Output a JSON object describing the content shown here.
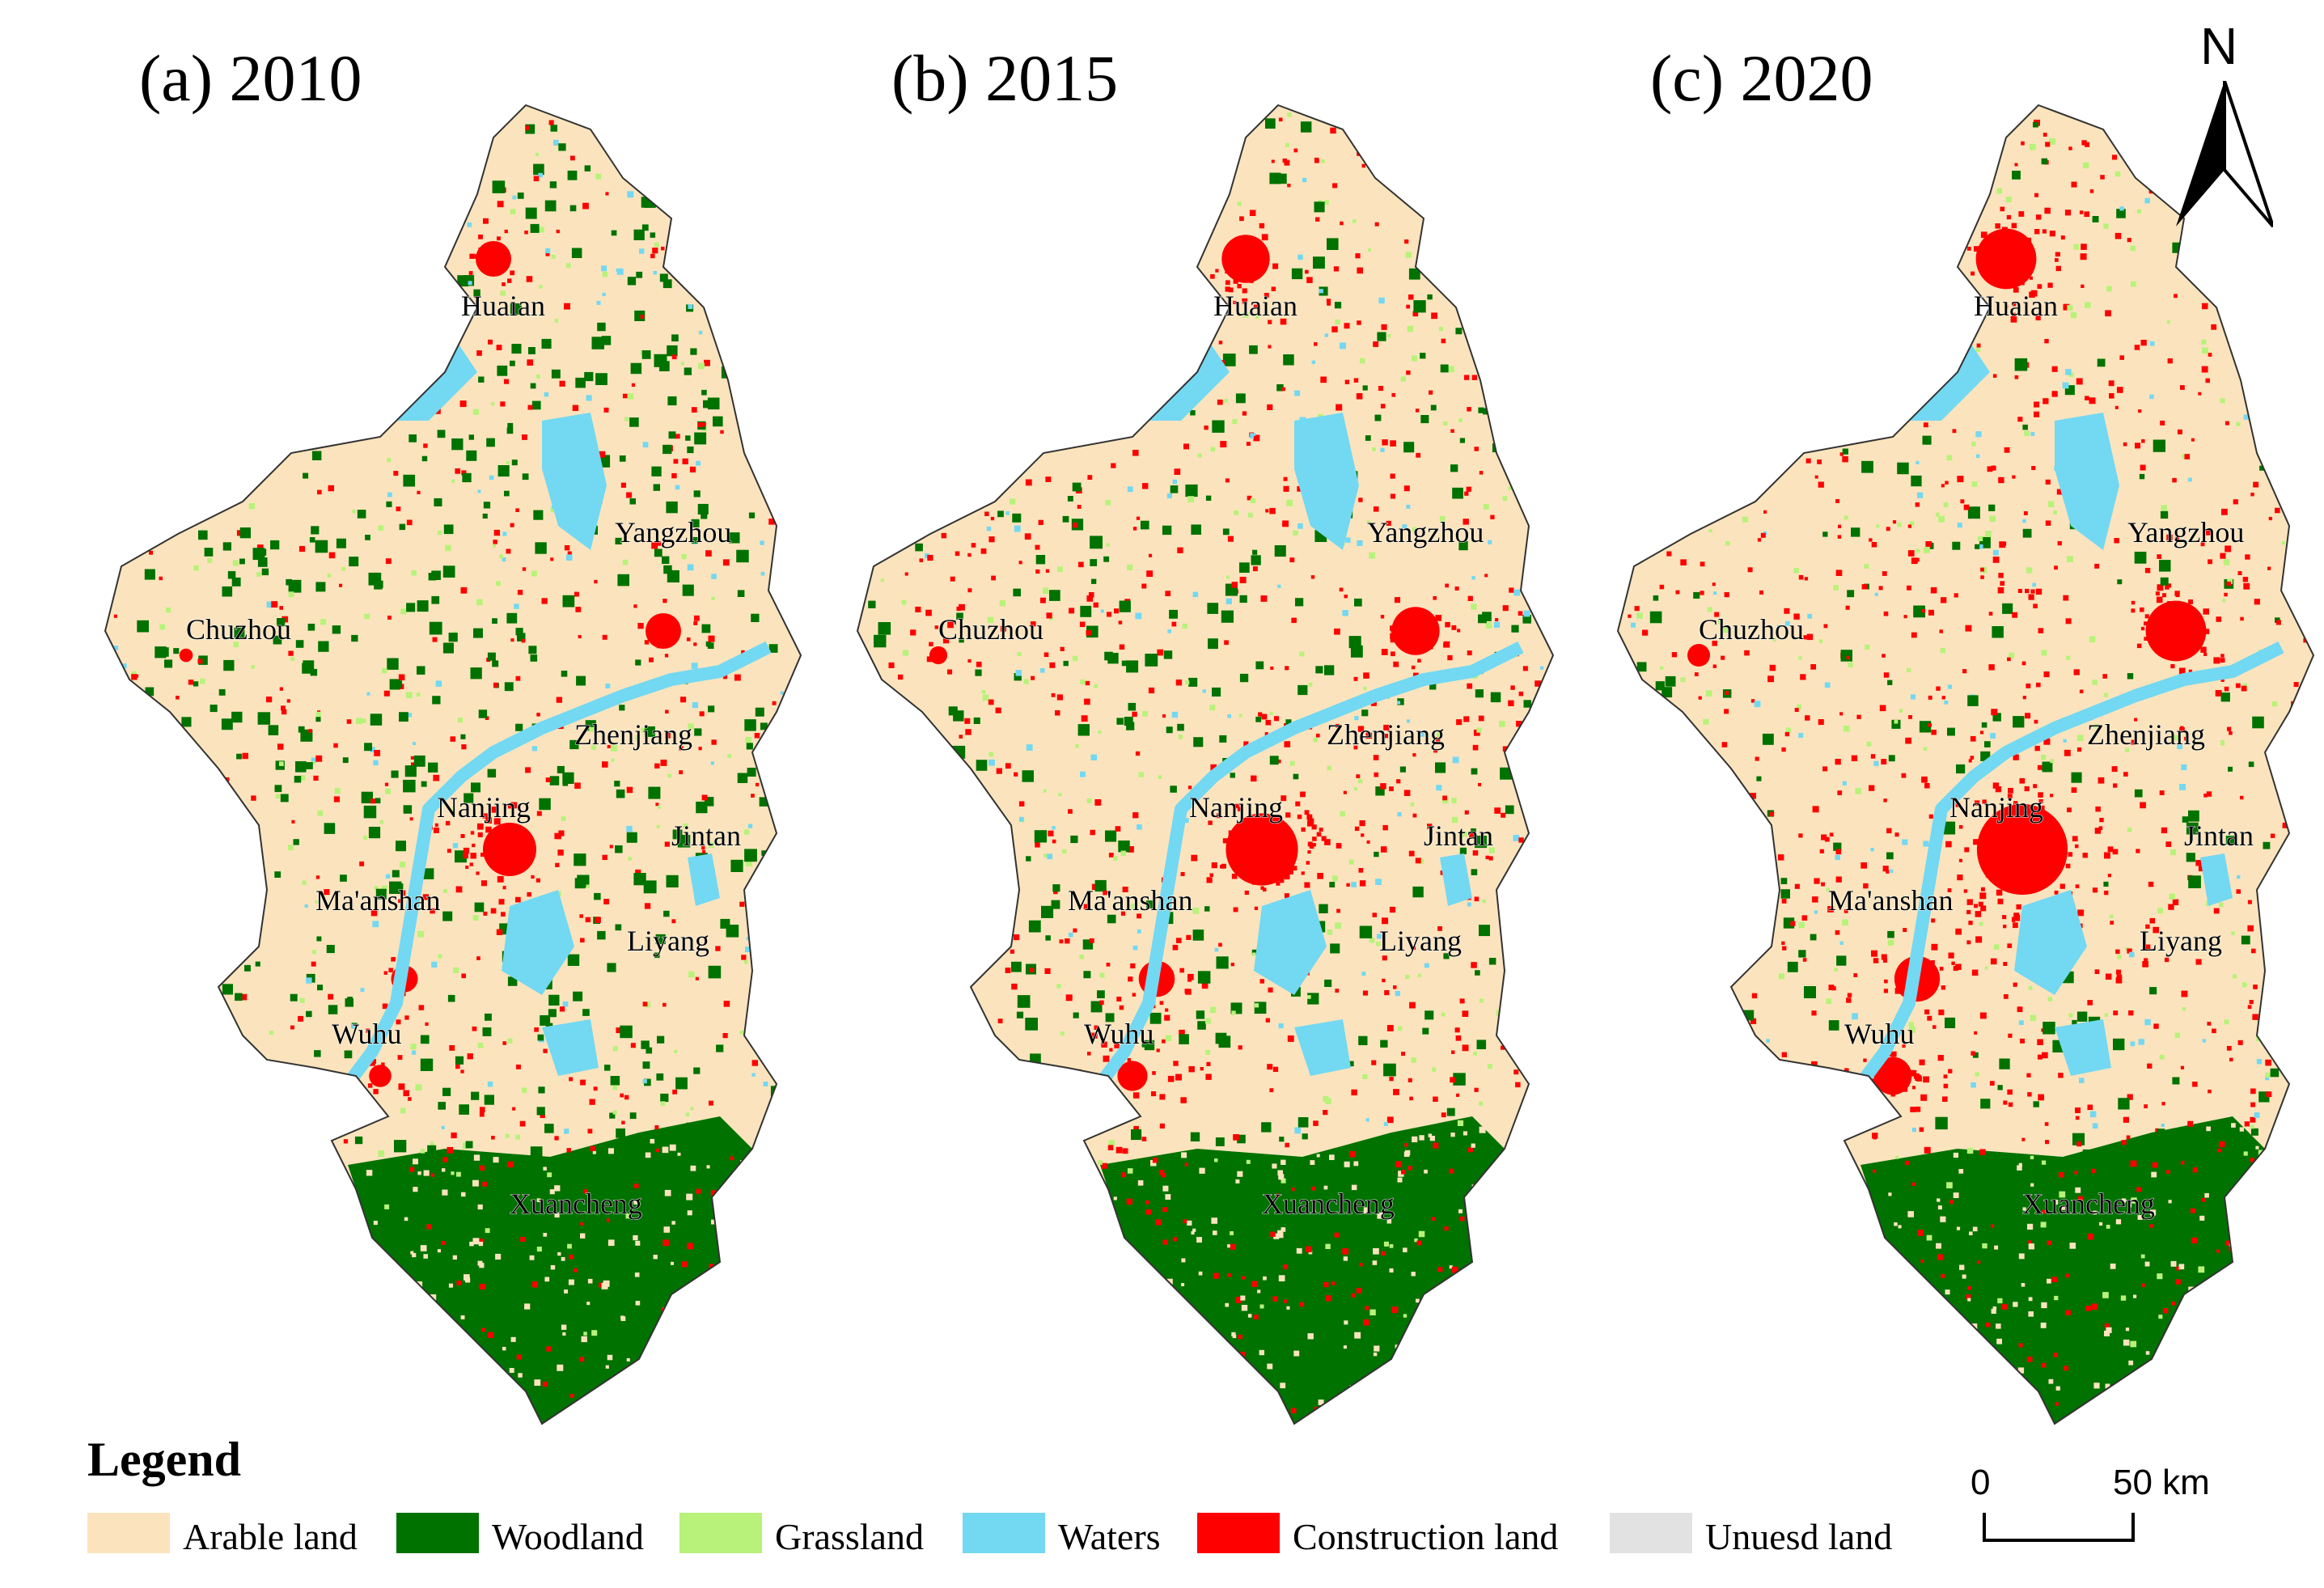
{
  "panels": [
    {
      "id": "a",
      "title": "(a) 2010",
      "color_seed": 11
    },
    {
      "id": "b",
      "title": "(b) 2015",
      "color_seed": 23
    },
    {
      "id": "c",
      "title": "(c) 2020",
      "color_seed": 37
    }
  ],
  "city_labels": [
    "Huaian",
    "Yangzhou",
    "Chuzhou",
    "Zhenjiang",
    "Nanjing",
    "Jintan",
    "Ma'anshan",
    "Liyang",
    "Wuhu",
    "Xuancheng"
  ],
  "legend": {
    "title": "Legend",
    "items": [
      {
        "label": "Arable land",
        "color": "#fbe4bd"
      },
      {
        "label": "Woodland",
        "color": "#007200"
      },
      {
        "label": "Grassland",
        "color": "#b8f27a"
      },
      {
        "label": "Waters",
        "color": "#73d8f2"
      },
      {
        "label": "Construction land",
        "color": "#ff0000"
      },
      {
        "label": "Unuesd land",
        "color": "#e2e2e2"
      }
    ]
  },
  "north_arrow": {
    "label": "N"
  },
  "scale_bar": {
    "start": "0",
    "end": "50 km"
  }
}
